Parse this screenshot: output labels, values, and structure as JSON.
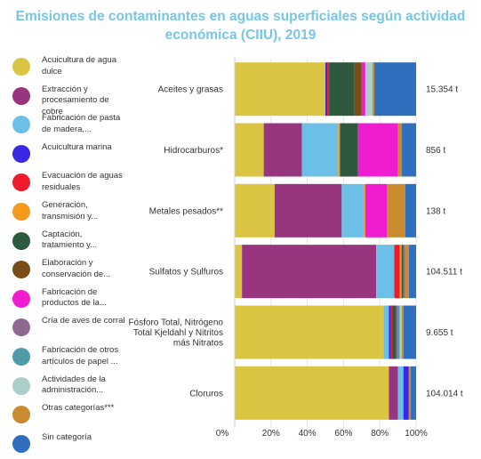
{
  "title_line1": "Emisiones de contaminantes en aguas superficiales según actividad",
  "title_line2": "económica (CIIU), 2019",
  "chart_data": {
    "type": "bar",
    "orientation": "horizontal",
    "stacked": "percent",
    "title": "Emisiones de contaminantes en aguas superficiales según actividad económica (CIIU), 2019",
    "xlim": [
      0,
      100
    ],
    "x_ticks": [
      "0%",
      "20%",
      "40%",
      "60%",
      "80%",
      "100%"
    ],
    "legend_position": "left",
    "categories": [
      {
        "label": [
          "Aceites y grasas"
        ],
        "total": "15.354 t"
      },
      {
        "label": [
          "Hidrocarburos*"
        ],
        "total": "856 t"
      },
      {
        "label": [
          "Metales pesados**"
        ],
        "total": "138 t"
      },
      {
        "label": [
          "Sulfatos y Sulfuros"
        ],
        "total": "104.511 t"
      },
      {
        "label": [
          "Fósforo Total, Nitrógeno",
          "Total Kjeldahl y Nitritos",
          "más Nitratos"
        ],
        "total": "9.655 t"
      },
      {
        "label": [
          "Cloruros"
        ],
        "total": "104.014 t"
      }
    ],
    "series": [
      {
        "name": "Acuicultura de agua dulce",
        "color": "#dcc443",
        "values": [
          50,
          16,
          22,
          4,
          82,
          85
        ]
      },
      {
        "name": "Extracción y procesamiento de cobre",
        "color": "#97357f",
        "values": [
          0,
          21,
          37,
          74,
          0,
          5
        ]
      },
      {
        "name": "Fabricación de pasta de madera,...",
        "color": "#6cc0e8",
        "values": [
          0,
          20,
          12,
          10,
          3,
          3
        ]
      },
      {
        "name": "Acuicultura marina",
        "color": "#3b27e6",
        "values": [
          1,
          0,
          0,
          0,
          1,
          3
        ]
      },
      {
        "name": "Evacuación de aguas residuales",
        "color": "#ef1b2b",
        "values": [
          1,
          0,
          0,
          3,
          1,
          0
        ]
      },
      {
        "name": "Generación, transmisión y...",
        "color": "#f49a1d",
        "values": [
          0,
          1,
          1,
          1,
          0,
          0
        ]
      },
      {
        "name": "Captación, tratamiento y...",
        "color": "#2d5a3e",
        "values": [
          14,
          10,
          0,
          1,
          2,
          0
        ]
      },
      {
        "name": "Elaboración y conservación de...",
        "color": "#7a4c17",
        "values": [
          4,
          0,
          0,
          0,
          0,
          0
        ]
      },
      {
        "name": "Fabricación de productos de la...",
        "color": "#f01ccf",
        "values": [
          2,
          22,
          12,
          0,
          0,
          0
        ]
      },
      {
        "name": "Cría de aves de corral",
        "color": "#8e6a91",
        "values": [
          0,
          0,
          0,
          1,
          1,
          0
        ]
      },
      {
        "name": "Fabricación de otros artículos de papel ...",
        "color": "#4d9ca8",
        "values": [
          0,
          0,
          0,
          0,
          1,
          0
        ]
      },
      {
        "name": "Actividades de la administración...",
        "color": "#aacfcb",
        "values": [
          4,
          0,
          0,
          0,
          1,
          0
        ]
      },
      {
        "name": "Otras categorías***",
        "color": "#c98b2e",
        "values": [
          1,
          2,
          10,
          2,
          1,
          1
        ]
      },
      {
        "name": "Sin categoría",
        "color": "#2f6fbd",
        "values": [
          23,
          8,
          6,
          4,
          7,
          3
        ]
      }
    ]
  }
}
